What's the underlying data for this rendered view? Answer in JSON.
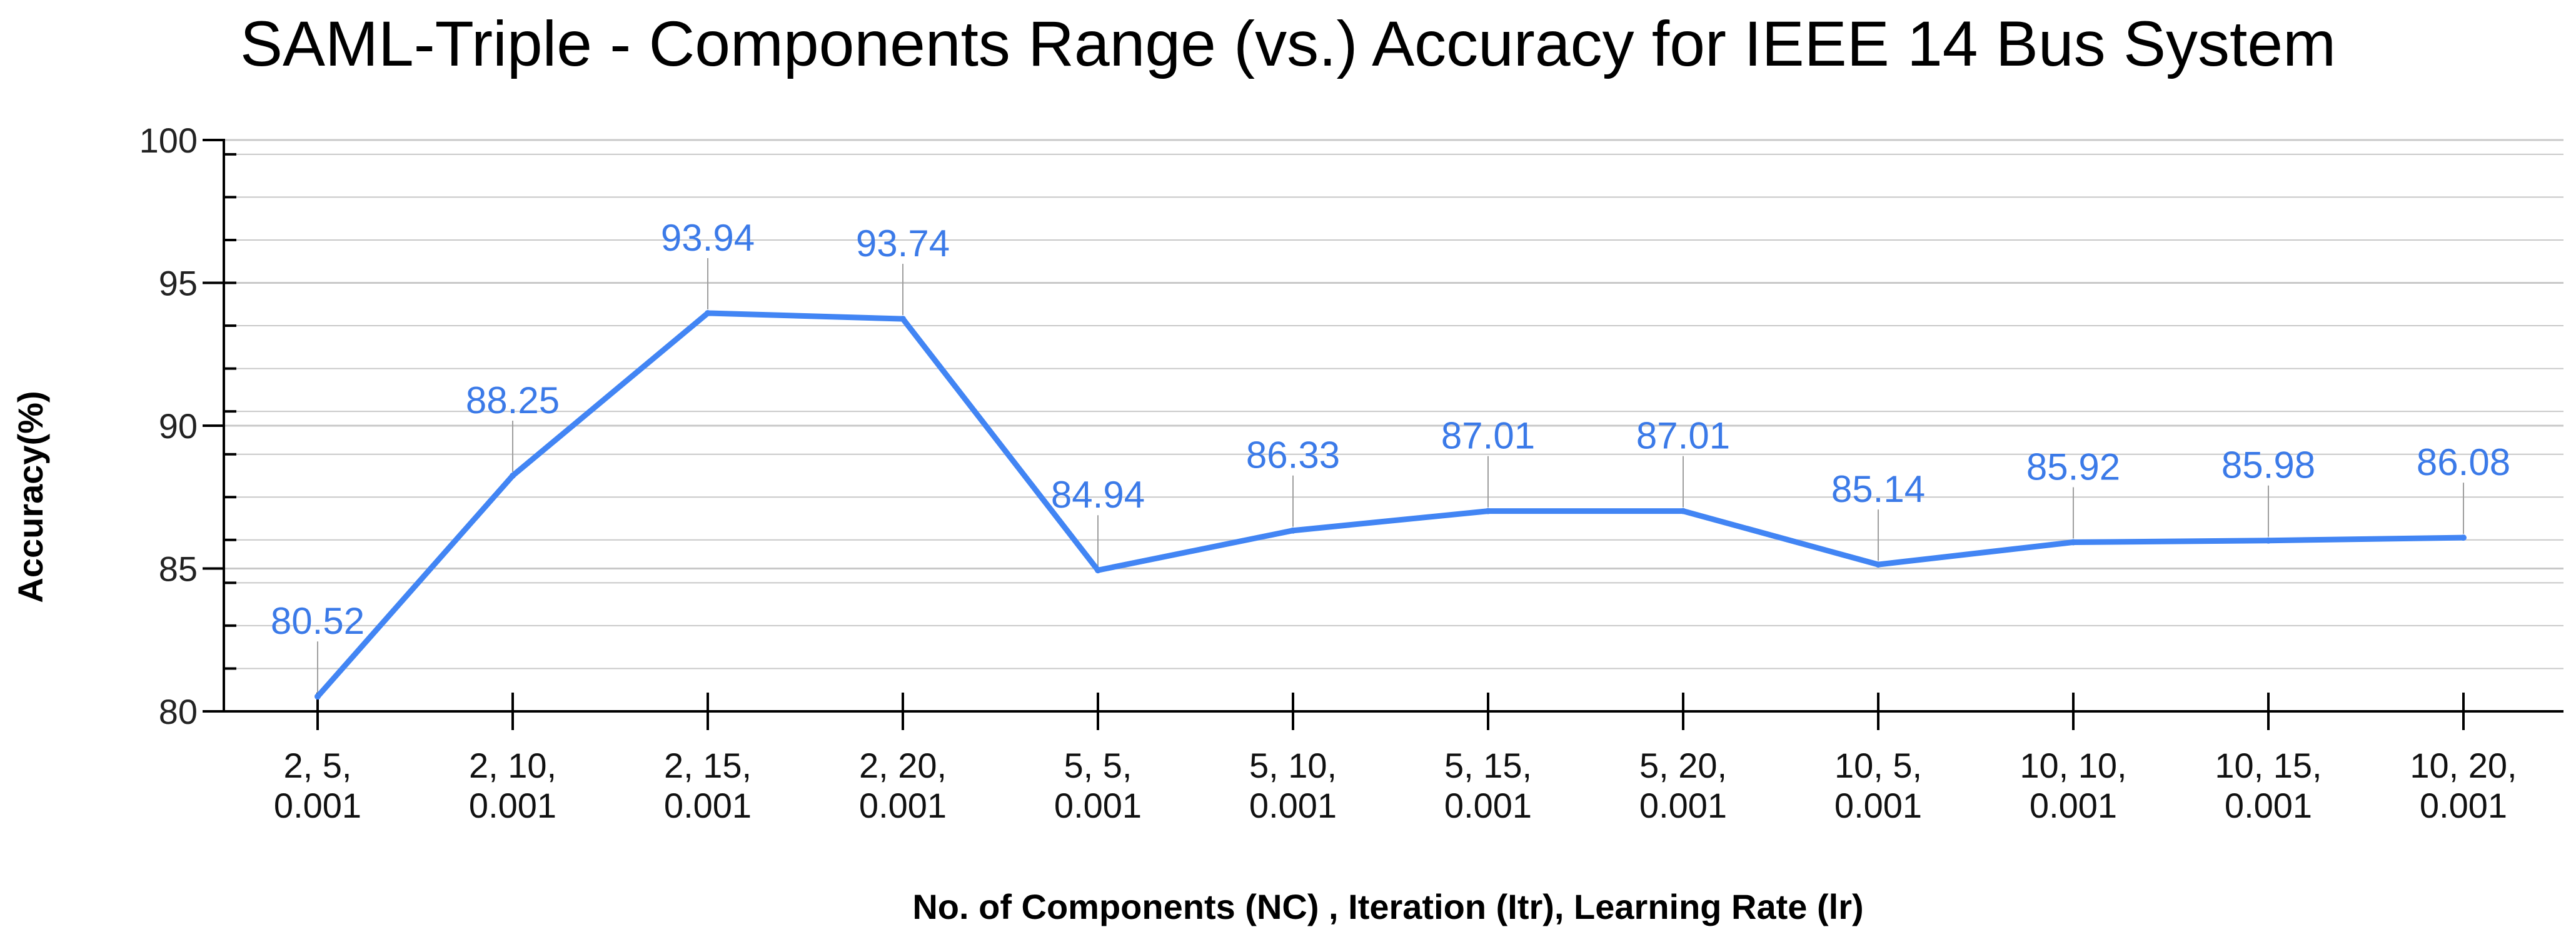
{
  "chart_data": {
    "type": "line",
    "title": "SAML-Triple - Components Range (vs.) Accuracy for IEEE 14 Bus System",
    "xlabel": "No. of Components (NC) , Iteration (Itr), Learning Rate (lr)",
    "ylabel": "Accuracy(%)",
    "categories": [
      [
        "2, 5,",
        "0.001"
      ],
      [
        "2, 10,",
        "0.001"
      ],
      [
        "2, 15,",
        "0.001"
      ],
      [
        "2, 20,",
        "0.001"
      ],
      [
        "5, 5,",
        "0.001"
      ],
      [
        "5, 10,",
        "0.001"
      ],
      [
        "5, 15,",
        "0.001"
      ],
      [
        "5, 20,",
        "0.001"
      ],
      [
        "10, 5,",
        "0.001"
      ],
      [
        "10, 10,",
        "0.001"
      ],
      [
        "10, 15,",
        "0.001"
      ],
      [
        "10, 20,",
        "0.001"
      ]
    ],
    "series": [
      {
        "values": [
          80.52,
          88.25,
          93.94,
          93.74,
          84.94,
          86.33,
          87.01,
          87.01,
          85.14,
          85.92,
          85.98,
          86.08
        ],
        "labels": [
          "80.52",
          "88.25",
          "93.94",
          "93.74",
          "84.94",
          "86.33",
          "87.01",
          "87.01",
          "85.14",
          "85.92",
          "85.98",
          "86.08"
        ],
        "color": "#4285f4",
        "label_color": "#3b7ae8"
      }
    ],
    "ylim": [
      80,
      100
    ],
    "yticks": [
      80,
      85,
      90,
      95,
      100
    ],
    "ytick_labels": [
      "80",
      "85",
      "90",
      "95",
      "100"
    ],
    "y_minor_step": 1.5,
    "grid": true,
    "legend": "none",
    "colors": {
      "gridline": "#c8c8c8",
      "axis": "#000000",
      "leader": "#9e9e9e"
    }
  }
}
